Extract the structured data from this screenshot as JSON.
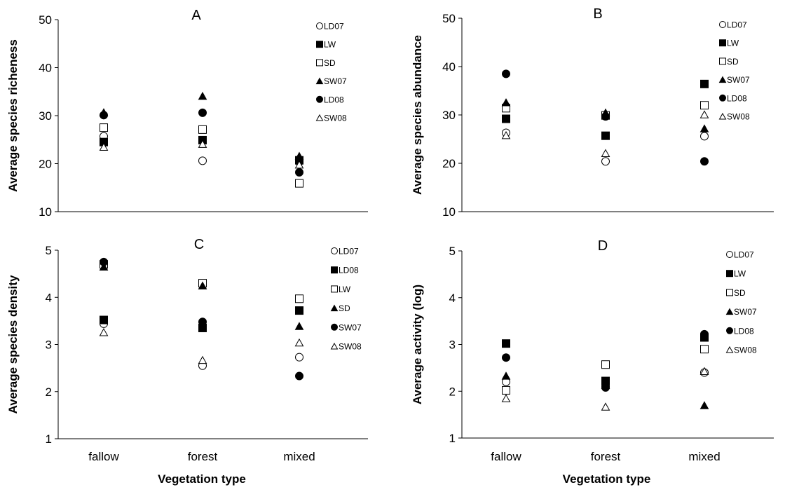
{
  "colors": {
    "filled": "#000000",
    "open": "#ffffff",
    "stroke": "#000000",
    "axis": "#000000"
  },
  "chart_data": [
    {
      "type": "scatter",
      "panel_label": "A",
      "ylabel": "Average species richeness",
      "xlabel": "",
      "categories": [
        "fallow",
        "forest",
        "mixed"
      ],
      "ylim": [
        10,
        50
      ],
      "yticks": [
        10,
        20,
        30,
        40,
        50
      ],
      "grid": false,
      "legend_position": "top-right",
      "series": [
        {
          "name": "LD07",
          "marker": "circle-open",
          "values": [
            25.7,
            20.6,
            20.4
          ]
        },
        {
          "name": "LW",
          "marker": "square-filled",
          "values": [
            24.5,
            24.9,
            20.7
          ]
        },
        {
          "name": "SD",
          "marker": "square-open",
          "values": [
            27.5,
            27.1,
            15.9
          ]
        },
        {
          "name": "SW07",
          "marker": "triangle-filled",
          "values": [
            30.7,
            34.1,
            21.6
          ]
        },
        {
          "name": "LD08",
          "marker": "circle-filled",
          "values": [
            30.1,
            30.6,
            18.2
          ]
        },
        {
          "name": "SW08",
          "marker": "triangle-open",
          "values": [
            23.5,
            24.1,
            19.8
          ]
        }
      ]
    },
    {
      "type": "scatter",
      "panel_label": "B",
      "ylabel": "Average species abundance",
      "xlabel": "",
      "categories": [
        "fallow",
        "forest",
        "mixed"
      ],
      "ylim": [
        10,
        50
      ],
      "yticks": [
        10,
        20,
        30,
        40,
        50
      ],
      "grid": false,
      "legend_position": "top-right",
      "series": [
        {
          "name": "LD07",
          "marker": "circle-open",
          "values": [
            26.3,
            20.4,
            25.6
          ]
        },
        {
          "name": "LW",
          "marker": "square-filled",
          "values": [
            29.2,
            25.7,
            36.4
          ]
        },
        {
          "name": "SD",
          "marker": "square-open",
          "values": [
            31.4,
            29.9,
            32.0
          ]
        },
        {
          "name": "SW07",
          "marker": "triangle-filled",
          "values": [
            32.6,
            30.5,
            27.2
          ]
        },
        {
          "name": "LD08",
          "marker": "circle-filled",
          "values": [
            38.5,
            29.7,
            20.4
          ]
        },
        {
          "name": "SW08",
          "marker": "triangle-open",
          "values": [
            25.8,
            22.1,
            30.1
          ]
        }
      ]
    },
    {
      "type": "scatter",
      "panel_label": "C",
      "ylabel": "Average species density",
      "xlabel": "Vegetation type",
      "categories": [
        "fallow",
        "forest",
        "mixed"
      ],
      "ylim": [
        1,
        5
      ],
      "yticks": [
        1,
        2,
        3,
        4,
        5
      ],
      "grid": false,
      "legend_position": "top-right",
      "series": [
        {
          "name": "LD07",
          "marker": "circle-open",
          "values": [
            3.44,
            2.55,
            2.73
          ]
        },
        {
          "name": "LD08",
          "marker": "square-filled",
          "values": [
            3.52,
            3.35,
            3.72
          ]
        },
        {
          "name": "LW",
          "marker": "square-open",
          "values": [
            4.7,
            4.3,
            3.97
          ]
        },
        {
          "name": "SD",
          "marker": "triangle-filled",
          "values": [
            4.65,
            4.25,
            3.39
          ]
        },
        {
          "name": "SW07",
          "marker": "circle-filled",
          "values": [
            4.75,
            3.48,
            2.33
          ]
        },
        {
          "name": "SW08",
          "marker": "triangle-open",
          "values": [
            3.26,
            2.67,
            3.04
          ]
        }
      ]
    },
    {
      "type": "scatter",
      "panel_label": "D",
      "ylabel": "Average activity (log)",
      "xlabel": "Vegetation type",
      "categories": [
        "fallow",
        "forest",
        "mixed"
      ],
      "ylim": [
        1,
        5
      ],
      "yticks": [
        1,
        2,
        3,
        4,
        5
      ],
      "grid": false,
      "legend_position": "top-right",
      "series": [
        {
          "name": "LD07",
          "marker": "circle-open",
          "values": [
            2.2,
            2.11,
            2.4
          ]
        },
        {
          "name": "LW",
          "marker": "square-filled",
          "values": [
            3.02,
            2.22,
            3.15
          ]
        },
        {
          "name": "SD",
          "marker": "square-open",
          "values": [
            2.02,
            2.57,
            2.9
          ]
        },
        {
          "name": "SW07",
          "marker": "triangle-filled",
          "values": [
            2.33,
            2.13,
            1.7
          ]
        },
        {
          "name": "LD08",
          "marker": "circle-filled",
          "values": [
            2.72,
            2.08,
            3.22
          ]
        },
        {
          "name": "SW08",
          "marker": "triangle-open",
          "values": [
            1.85,
            1.67,
            2.43
          ]
        }
      ]
    }
  ]
}
